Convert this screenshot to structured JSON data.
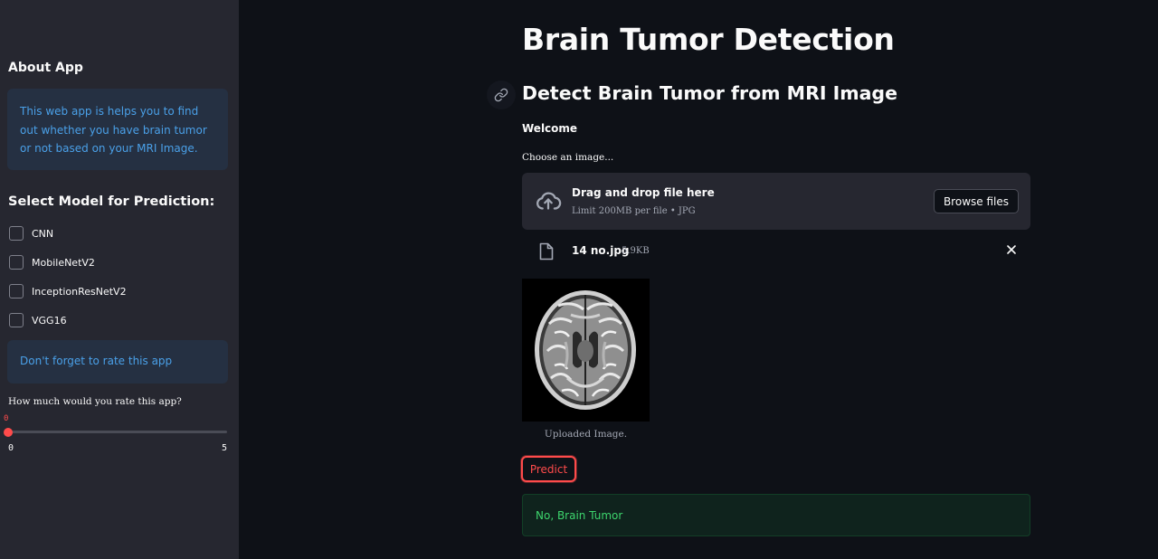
{
  "sidebar": {
    "about_heading": "About App",
    "about_text": "This web app is helps you to find out whether you have brain tumor or not based on your MRI Image.",
    "model_heading": "Select Model for Prediction:",
    "models": [
      {
        "label": "CNN",
        "checked": false
      },
      {
        "label": "MobileNetV2",
        "checked": false
      },
      {
        "label": "InceptionResNetV2",
        "checked": false
      },
      {
        "label": "VGG16",
        "checked": false
      }
    ],
    "rate_info": "Don't forget to rate this app",
    "slider": {
      "label": "How much would you rate this app?",
      "value": "0",
      "min": "0",
      "max": "5"
    }
  },
  "main": {
    "title": "Brain Tumor Detection",
    "subtitle": "Detect Brain Tumor from MRI Image",
    "welcome": "Welcome",
    "uploader": {
      "label": "Choose an image...",
      "drag_text": "Drag and drop file here",
      "limit_text": "Limit 200MB per file • JPG",
      "browse_label": "Browse files"
    },
    "file": {
      "name": "14 no.jpg",
      "size": "5.9KB"
    },
    "image_caption": "Uploaded Image.",
    "predict_label": "Predict",
    "result": "No, Brain Tumor"
  },
  "colors": {
    "background": "#0e1117",
    "sidebar": "#262730",
    "accent": "#ff4b4b",
    "info_text": "#4aa0e8",
    "success_text": "#3dd56d"
  },
  "icons": [
    "link-icon",
    "cloud-upload-icon",
    "file-icon",
    "close-icon"
  ]
}
